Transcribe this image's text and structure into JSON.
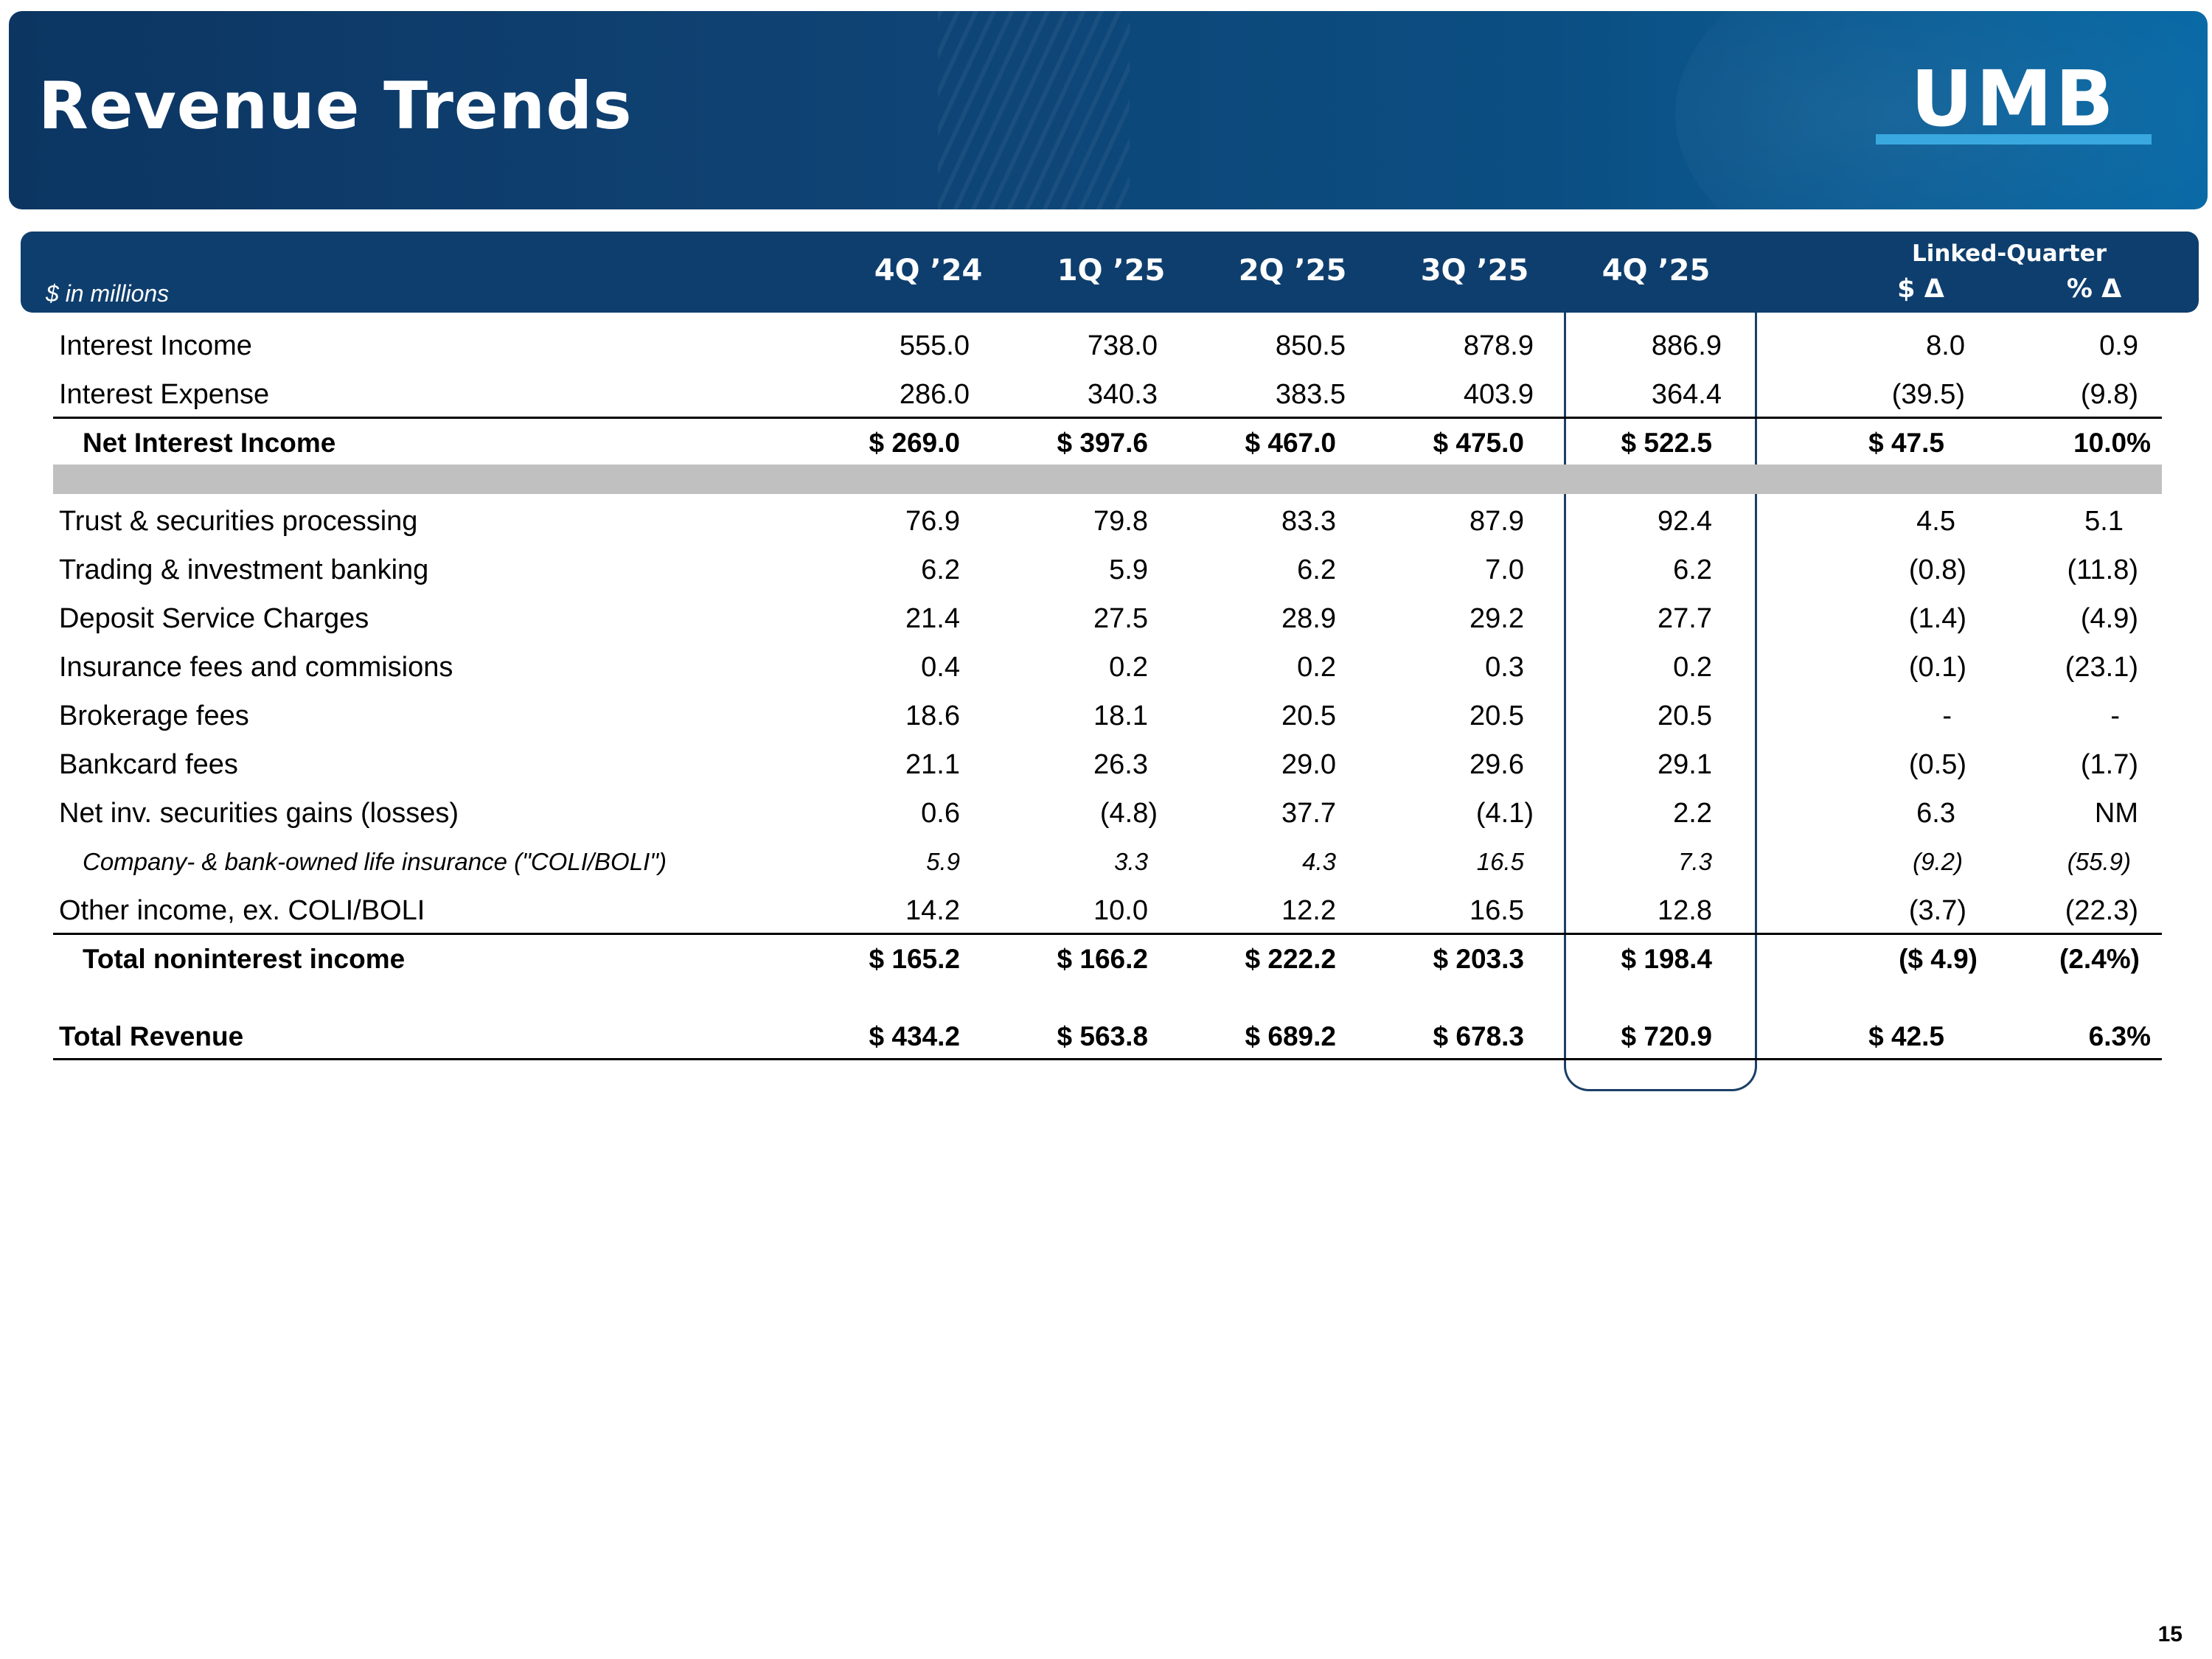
{
  "title": "Revenue Trends",
  "logo": {
    "text": "UMB"
  },
  "table": {
    "units": "$ in millions",
    "columns": [
      "4Q ’24",
      "1Q ’25",
      "2Q ’25",
      "3Q ’25",
      "4Q ’25"
    ],
    "linked_quarter": {
      "label": "Linked-Quarter",
      "dollar": "$ Δ",
      "pct": "% Δ"
    },
    "rows": [
      {
        "label": "Interest Income",
        "values": [
          "555.0",
          "738.0",
          "850.5",
          "878.9",
          "886.9",
          "8.0",
          "0.9"
        ]
      },
      {
        "label": "Interest Expense",
        "values": [
          "286.0",
          "340.3",
          "383.5",
          "403.9",
          "364.4",
          "(39.5)",
          "(9.8)"
        ]
      },
      {
        "label": "Net Interest Income",
        "values": [
          "$ 269.0",
          "$ 397.6",
          "$ 467.0",
          "$ 475.0",
          "$ 522.5",
          "$ 47.5",
          "10.0%"
        ]
      },
      {
        "label": "Trust & securities processing",
        "values": [
          "76.9",
          "79.8",
          "83.3",
          "87.9",
          "92.4",
          "4.5",
          "5.1"
        ]
      },
      {
        "label": "Trading & investment banking",
        "values": [
          "6.2",
          "5.9",
          "6.2",
          "7.0",
          "6.2",
          "(0.8)",
          "(11.8)"
        ]
      },
      {
        "label": "Deposit Service Charges",
        "values": [
          "21.4",
          "27.5",
          "28.9",
          "29.2",
          "27.7",
          "(1.4)",
          "(4.9)"
        ]
      },
      {
        "label": "Insurance fees and commisions",
        "values": [
          "0.4",
          "0.2",
          "0.2",
          "0.3",
          "0.2",
          "(0.1)",
          "(23.1)"
        ]
      },
      {
        "label": "Brokerage fees",
        "values": [
          "18.6",
          "18.1",
          "20.5",
          "20.5",
          "20.5",
          "-",
          "-"
        ]
      },
      {
        "label": "Bankcard fees",
        "values": [
          "21.1",
          "26.3",
          "29.0",
          "29.6",
          "29.1",
          "(0.5)",
          "(1.7)"
        ]
      },
      {
        "label": "Net inv. securities gains (losses)",
        "values": [
          "0.6",
          "(4.8)",
          "37.7",
          "(4.1)",
          "2.2",
          "6.3",
          "NM"
        ]
      },
      {
        "label": "Company- & bank-owned life insurance (\"COLI/BOLI\")",
        "values": [
          "5.9",
          "3.3",
          "4.3",
          "16.5",
          "7.3",
          "(9.2)",
          "(55.9)"
        ]
      },
      {
        "label": "Other income, ex. COLI/BOLI",
        "values": [
          "14.2",
          "10.0",
          "12.2",
          "16.5",
          "12.8",
          "(3.7)",
          "(22.3)"
        ]
      },
      {
        "label": "Total noninterest income",
        "values": [
          "$ 165.2",
          "$ 166.2",
          "$ 222.2",
          "$ 203.3",
          "$ 198.4",
          "($ 4.9)",
          "(2.4%)"
        ]
      },
      {
        "label": "Total Revenue",
        "values": [
          "$ 434.2",
          "$ 563.8",
          "$ 689.2",
          "$ 678.3",
          "$ 720.9",
          "$ 42.5",
          "6.3%"
        ]
      }
    ]
  },
  "page_number": "15"
}
